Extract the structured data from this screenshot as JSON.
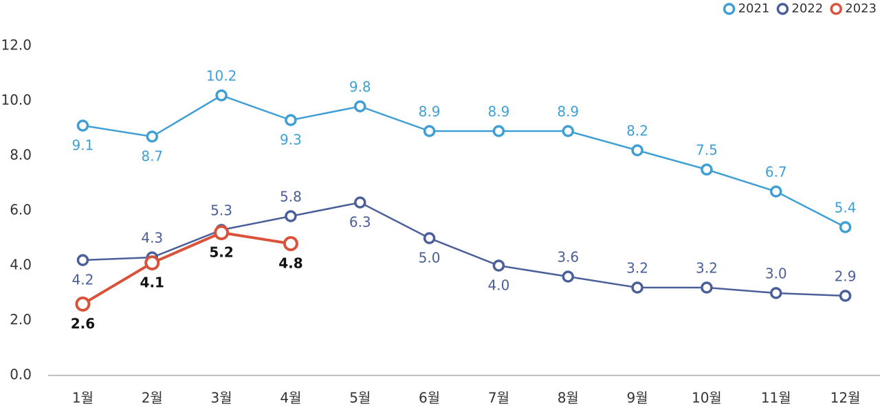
{
  "chart_data": {
    "type": "line",
    "categories": [
      "1월",
      "2월",
      "3월",
      "4월",
      "5월",
      "6월",
      "7월",
      "8월",
      "9월",
      "10월",
      "11월",
      "12월"
    ],
    "series": [
      {
        "name": "2021",
        "color": "#3f9fd4",
        "values": [
          9.1,
          8.7,
          10.2,
          9.3,
          9.8,
          8.9,
          8.9,
          8.9,
          8.2,
          7.5,
          6.7,
          5.4
        ]
      },
      {
        "name": "2022",
        "color": "#4a5f9a",
        "values": [
          4.2,
          4.3,
          5.3,
          5.8,
          6.3,
          5.0,
          4.0,
          3.6,
          3.2,
          3.2,
          3.0,
          2.9
        ],
        "value_labels": [
          "4.2",
          "4.3",
          "5.3",
          "5.8",
          "6.3",
          "5.0",
          "4.0",
          "3.6",
          "3.2",
          "3.2",
          "3.0",
          "2.9"
        ]
      },
      {
        "name": "2023",
        "color": "#d9533a",
        "values": [
          2.6,
          4.1,
          5.2,
          4.8,
          null,
          null,
          null,
          null,
          null,
          null,
          null,
          null
        ]
      }
    ],
    "ylim": [
      0,
      12
    ],
    "yticks": [
      {
        "value": 0,
        "label": "0.0"
      },
      {
        "value": 2,
        "label": "2.0"
      },
      {
        "value": 4,
        "label": "4.0"
      },
      {
        "value": 6,
        "label": "6.0"
      },
      {
        "value": 8,
        "label": "8.0"
      },
      {
        "value": 10,
        "label": "10.0"
      },
      {
        "value": 12,
        "label": "12.0"
      }
    ],
    "legend": "top-right"
  }
}
